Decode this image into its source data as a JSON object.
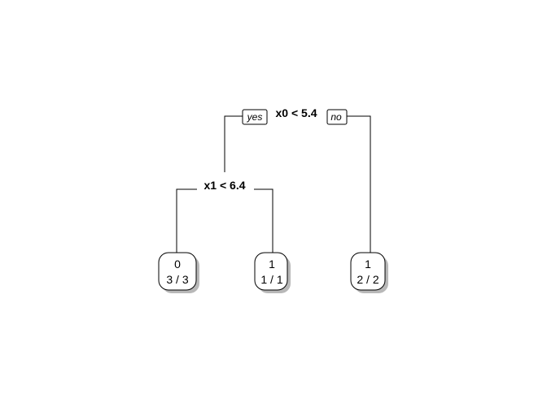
{
  "tree": {
    "root_split": "x0 < 5.4",
    "yes_label": "yes",
    "no_label": "no",
    "left_split": "x1 < 6.4",
    "leaves": [
      {
        "class": "0",
        "counts": "3 / 3"
      },
      {
        "class": "1",
        "counts": "1 / 1"
      },
      {
        "class": "1",
        "counts": "2 / 2"
      }
    ]
  }
}
